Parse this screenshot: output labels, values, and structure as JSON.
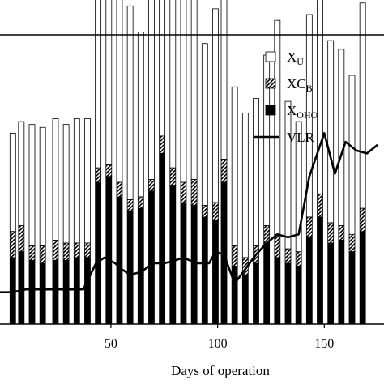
{
  "chart_data": {
    "type": "bar",
    "stacked": true,
    "xlabel": "Days of operation",
    "x_ticks": [
      50,
      100,
      150
    ],
    "xlim": [
      -2,
      178
    ],
    "ylim": [
      0,
      100
    ],
    "legend_position": "top-right",
    "legend": [
      {
        "key": "xu",
        "base": "X",
        "sub": "U",
        "marker": "open-square"
      },
      {
        "key": "xcb",
        "base": "XC",
        "sub": "B",
        "marker": "hatched-square"
      },
      {
        "key": "xoho",
        "base": "X",
        "sub": "OHO",
        "marker": "filled-square"
      },
      {
        "key": "vlr",
        "base": "VLR",
        "sub": "",
        "marker": "line"
      }
    ],
    "colors": {
      "xu": "#ffffff",
      "xcb_hatch": "#000000",
      "xoho": "#000000",
      "vlr": "#000000",
      "axis": "#000000"
    },
    "bars": [
      {
        "day": 4,
        "xoho": 23,
        "xcb": 9,
        "xu": 34
      },
      {
        "day": 8,
        "xoho": 25,
        "xcb": 9,
        "xu": 36
      },
      {
        "day": 13,
        "xoho": 22,
        "xcb": 5,
        "xu": 42
      },
      {
        "day": 18,
        "xoho": 21,
        "xcb": 6,
        "xu": 41
      },
      {
        "day": 24,
        "xoho": 22,
        "xcb": 7,
        "xu": 42
      },
      {
        "day": 29,
        "xoho": 22,
        "xcb": 6,
        "xu": 41
      },
      {
        "day": 34,
        "xoho": 23,
        "xcb": 5,
        "xu": 43
      },
      {
        "day": 39,
        "xoho": 23,
        "xcb": 5,
        "xu": 43
      },
      {
        "day": 44,
        "xoho": 49,
        "xcb": 5,
        "xu": 97
      },
      {
        "day": 49,
        "xoho": 51,
        "xcb": 4,
        "xu": 101
      },
      {
        "day": 54,
        "xoho": 44,
        "xcb": 5,
        "xu": 82
      },
      {
        "day": 59,
        "xoho": 39,
        "xcb": 4,
        "xu": 67
      },
      {
        "day": 64,
        "xoho": 40,
        "xcb": 4,
        "xu": 57
      },
      {
        "day": 69,
        "xoho": 46,
        "xcb": 4,
        "xu": 71
      },
      {
        "day": 74,
        "xoho": 59,
        "xcb": 6,
        "xu": 94
      },
      {
        "day": 79,
        "xoho": 48,
        "xcb": 6,
        "xu": 95
      },
      {
        "day": 84,
        "xoho": 42,
        "xcb": 7,
        "xu": 81
      },
      {
        "day": 89,
        "xoho": 41,
        "xcb": 9,
        "xu": 78
      },
      {
        "day": 94,
        "xoho": 37,
        "xcb": 4,
        "xu": 56
      },
      {
        "day": 99,
        "xoho": 36,
        "xcb": 6,
        "xu": 67
      },
      {
        "day": 103,
        "xoho": 49,
        "xcb": 8,
        "xu": 81
      },
      {
        "day": 108,
        "xoho": 20,
        "xcb": 7,
        "xu": 55
      },
      {
        "day": 113,
        "xoho": 17,
        "xcb": 6,
        "xu": 50
      },
      {
        "day": 118,
        "xoho": 21,
        "xcb": 6,
        "xu": 51
      },
      {
        "day": 123,
        "xoho": 28,
        "xcb": 6,
        "xu": 59
      },
      {
        "day": 128,
        "xoho": 23,
        "xcb": 8,
        "xu": 74
      },
      {
        "day": 133,
        "xoho": 21,
        "xcb": 5,
        "xu": 51
      },
      {
        "day": 138,
        "xoho": 20,
        "xcb": 5,
        "xu": 45
      },
      {
        "day": 143,
        "xoho": 30,
        "xcb": 7,
        "xu": 70
      },
      {
        "day": 148,
        "xoho": 37,
        "xcb": 8,
        "xu": 77
      },
      {
        "day": 153,
        "xoho": 28,
        "xcb": 7,
        "xu": 63
      },
      {
        "day": 158,
        "xoho": 29,
        "xcb": 5,
        "xu": 61
      },
      {
        "day": 163,
        "xoho": 25,
        "xcb": 6,
        "xu": 55
      },
      {
        "day": 168,
        "xoho": 32,
        "xcb": 8,
        "xu": 71
      }
    ],
    "vlr": {
      "name": "VLR",
      "x": [
        -2,
        4,
        10,
        20,
        30,
        37,
        43,
        47,
        52,
        55,
        59,
        64,
        70,
        75,
        80,
        84,
        90,
        96,
        99,
        103,
        108,
        113,
        118,
        123,
        128,
        133,
        138,
        143,
        150,
        155,
        160,
        165,
        170,
        175
      ],
      "y": [
        11,
        11,
        12,
        12,
        12,
        12,
        21,
        23,
        21,
        19,
        17,
        18,
        21,
        21,
        22,
        23,
        21,
        21,
        25,
        24,
        14,
        19,
        24,
        28,
        31,
        30,
        31,
        51,
        66,
        52,
        63,
        60,
        59,
        62
      ]
    }
  }
}
